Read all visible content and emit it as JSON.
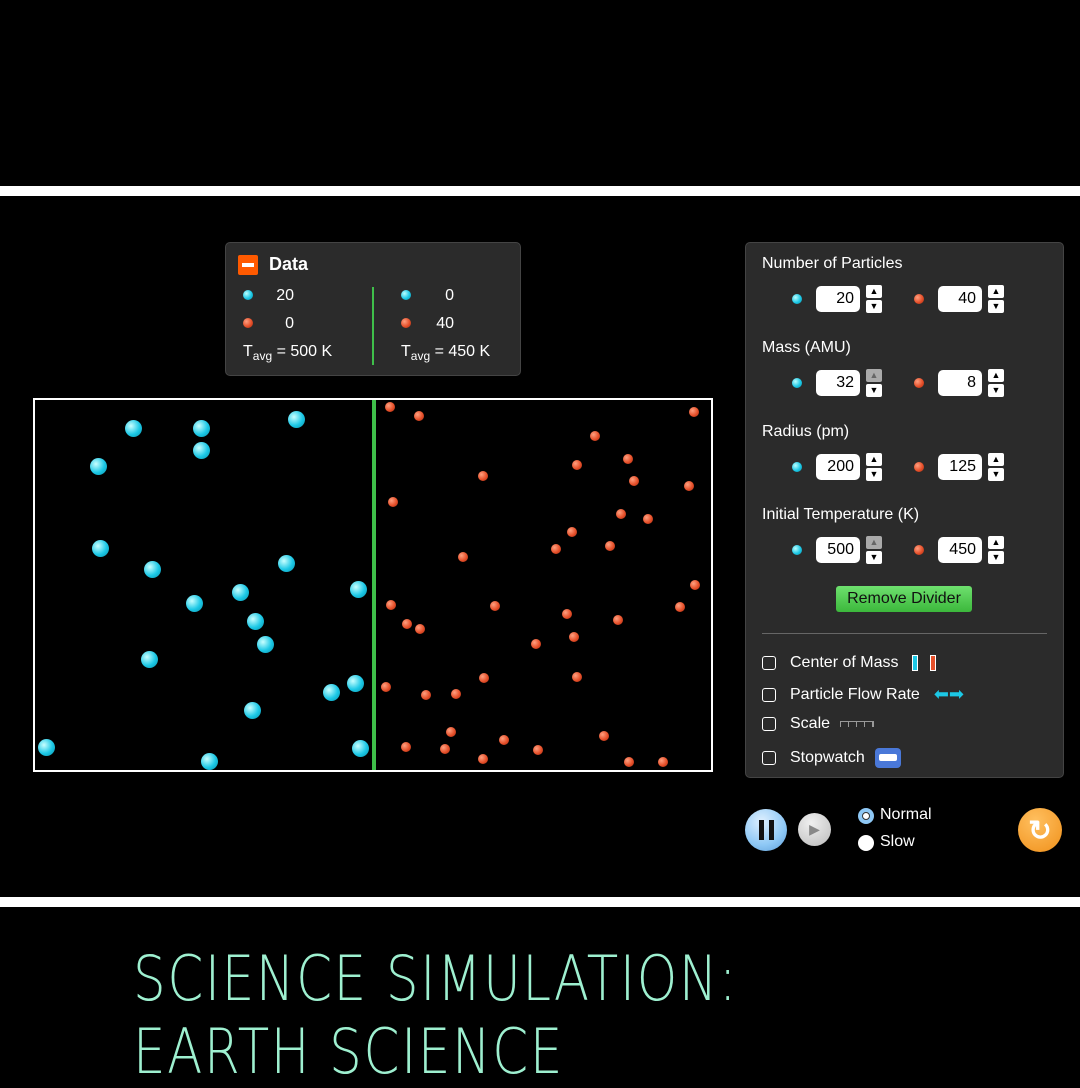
{
  "data_panel": {
    "title": "Data",
    "left": {
      "blue_count": "20",
      "red_count": "0",
      "tavg": "= 500 K"
    },
    "right": {
      "blue_count": "0",
      "red_count": "40",
      "tavg": "= 450 K"
    },
    "tavg_T": "T",
    "tavg_sub": "avg"
  },
  "controls": {
    "particles": {
      "label": "Number of Particles",
      "blue": "20",
      "red": "40"
    },
    "mass": {
      "label": "Mass (AMU)",
      "blue": "32",
      "red": "8"
    },
    "radius": {
      "label": "Radius (pm)",
      "blue": "200",
      "red": "125"
    },
    "temperature": {
      "label": "Initial Temperature (K)",
      "blue": "500",
      "red": "450"
    },
    "remove_divider": "Remove Divider",
    "checkboxes": [
      {
        "label": "Center of Mass",
        "checked": false
      },
      {
        "label": "Particle Flow Rate",
        "checked": false
      },
      {
        "label": "Scale",
        "checked": false
      },
      {
        "label": "Stopwatch",
        "checked": false
      }
    ]
  },
  "playback": {
    "speed_options": [
      "Normal",
      "Slow"
    ],
    "selected": "Normal",
    "state": "playing"
  },
  "colors": {
    "blue": "#1cc8e6",
    "red": "#e6502a",
    "divider": "#3fbf4a",
    "accent": "#ff5a00"
  },
  "banner": "SCIENCE SIMULATION: EARTH SCIENCE"
}
